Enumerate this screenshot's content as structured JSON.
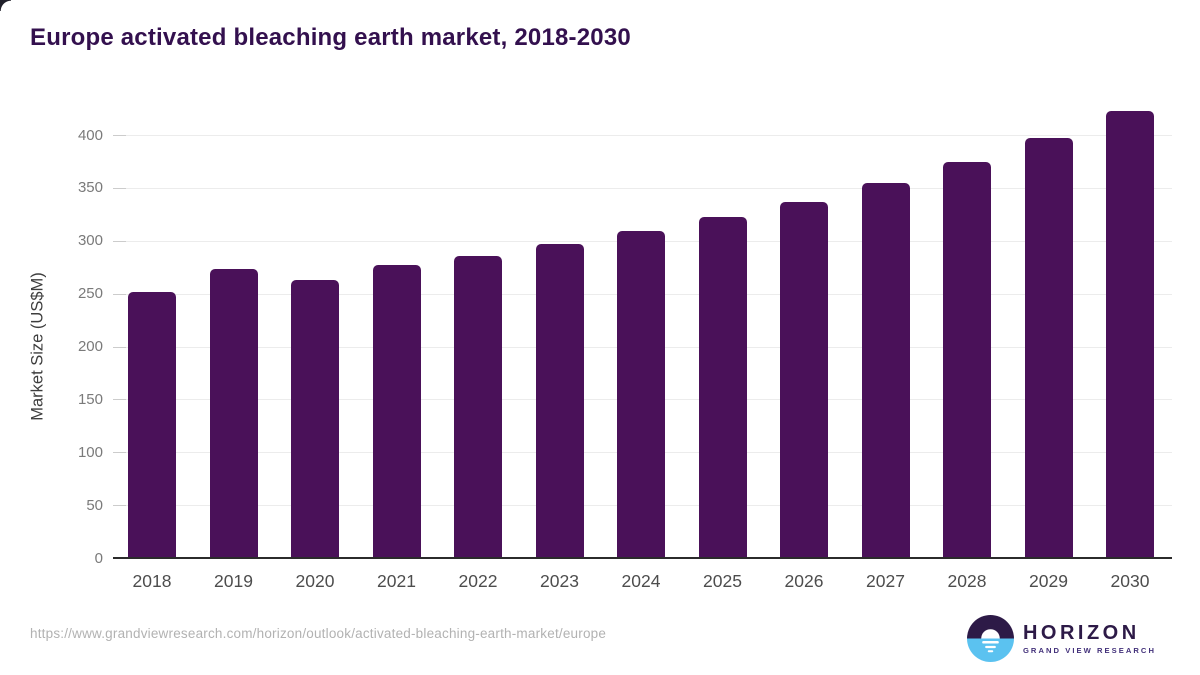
{
  "page": {
    "title": "Europe activated bleaching earth market, 2018-2030",
    "source_url": "https://www.grandviewresearch.com/horizon/outlook/activated-bleaching-earth-market/europe"
  },
  "chart_data": {
    "type": "bar",
    "title": "Europe activated bleaching earth market, 2018-2030",
    "categories": [
      "2018",
      "2019",
      "2020",
      "2021",
      "2022",
      "2023",
      "2024",
      "2025",
      "2026",
      "2027",
      "2028",
      "2029",
      "2030"
    ],
    "values": [
      252,
      273,
      263,
      277,
      286,
      297,
      309,
      322,
      337,
      355,
      374,
      397,
      423
    ],
    "series_name": "Market Size",
    "xlabel": "",
    "ylabel": "Market Size (US$M)",
    "ylim": [
      0,
      430
    ],
    "yticks": [
      0,
      50,
      100,
      150,
      200,
      250,
      300,
      350,
      400
    ],
    "grid": true,
    "legend": false
  },
  "logo": {
    "brand": "HORIZON",
    "subtitle": "GRAND VIEW RESEARCH",
    "icon": "horizon-sun-over-water-icon"
  },
  "colors": {
    "bar": "#4a1159",
    "title_text": "#33104e",
    "ytick_text": "#7a7a7a",
    "xtick_text": "#4d4d4d",
    "gridline": "#ececec",
    "tick_dash": "#cccccc",
    "axis_line": "#2b2b2b",
    "url_text": "#b2b2b2",
    "logo_dark": "#2d1a47",
    "logo_subtitle": "#42307a",
    "logo_blue": "#5bc2f0"
  }
}
